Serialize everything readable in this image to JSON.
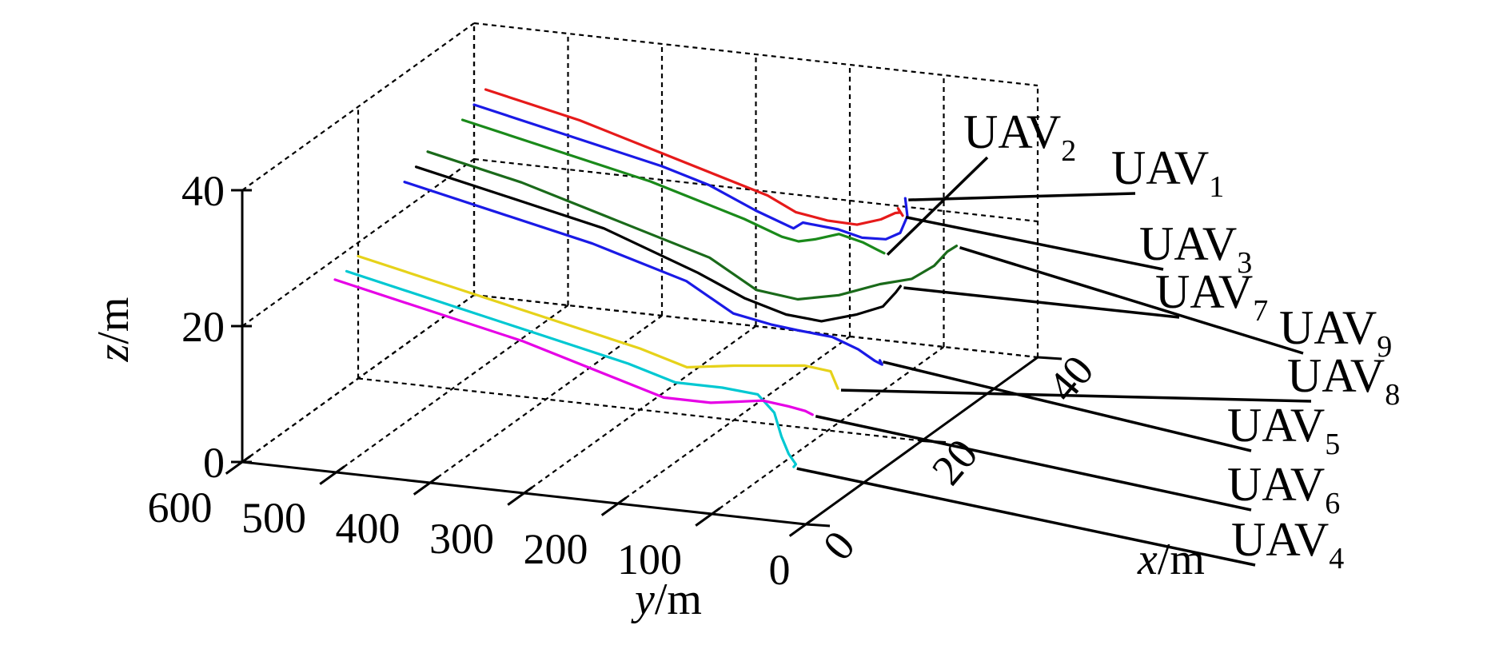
{
  "chart_data": {
    "type": "line3d",
    "title": "",
    "xlabel": {
      "var": "x",
      "unit": "/m"
    },
    "ylabel": {
      "var": "y",
      "unit": "/m"
    },
    "zlabel": {
      "var": "z",
      "unit": "/m"
    },
    "xlim": [
      0,
      40
    ],
    "ylim": [
      0,
      600
    ],
    "zlim": [
      0,
      40
    ],
    "x_ticks": [
      "0",
      "20",
      "40"
    ],
    "y_ticks": [
      "600",
      "500",
      "400",
      "300",
      "200",
      "100",
      "0"
    ],
    "z_ticks": [
      "0",
      "20",
      "40"
    ],
    "grid": true,
    "series": [
      {
        "name": "UAV",
        "sub": "1",
        "color": "#1a1ae6",
        "points": [
          [
            40,
            600,
            28
          ],
          [
            40,
            500,
            25
          ],
          [
            40,
            400,
            22
          ],
          [
            40,
            350,
            20
          ],
          [
            40,
            300,
            17
          ],
          [
            40,
            260,
            15
          ],
          [
            40,
            250,
            16
          ],
          [
            38,
            200,
            17
          ],
          [
            34,
            150,
            19
          ],
          [
            30,
            100,
            22
          ],
          [
            26,
            60,
            26
          ],
          [
            24,
            40,
            30
          ],
          [
            22,
            30,
            34
          ]
        ]
      },
      {
        "name": "UAV",
        "sub": "2",
        "color": "#1a8a1a",
        "points": [
          [
            38,
            600,
            27
          ],
          [
            38,
            500,
            24
          ],
          [
            38,
            400,
            21
          ],
          [
            38,
            350,
            19
          ],
          [
            38,
            300,
            17
          ],
          [
            38,
            260,
            15
          ],
          [
            36,
            230,
            16
          ],
          [
            34,
            200,
            18
          ],
          [
            30,
            150,
            22
          ],
          [
            26,
            100,
            24
          ],
          [
            22,
            60,
            26
          ],
          [
            20,
            40,
            27
          ]
        ]
      },
      {
        "name": "UAV",
        "sub": "3",
        "color": "#e61a1a",
        "points": [
          [
            42,
            600,
            29
          ],
          [
            42,
            500,
            26
          ],
          [
            42,
            400,
            22
          ],
          [
            42,
            300,
            18
          ],
          [
            42,
            270,
            16
          ],
          [
            41,
            230,
            16
          ],
          [
            38,
            180,
            18
          ],
          [
            34,
            130,
            22
          ],
          [
            30,
            90,
            26
          ],
          [
            26,
            60,
            29
          ],
          [
            24,
            50,
            31
          ],
          [
            24,
            45,
            30
          ]
        ]
      },
      {
        "name": "UAV",
        "sub": "4",
        "color": "#00c8d2",
        "points": [
          [
            18,
            600,
            17
          ],
          [
            18,
            500,
            14
          ],
          [
            18,
            400,
            11
          ],
          [
            18,
            300,
            8
          ],
          [
            18,
            250,
            6
          ],
          [
            18,
            200,
            6
          ],
          [
            16,
            150,
            7
          ],
          [
            14,
            120,
            6
          ],
          [
            12,
            100,
            4
          ],
          [
            10,
            80,
            3
          ],
          [
            8,
            60,
            3
          ],
          [
            6,
            50,
            4
          ]
        ]
      },
      {
        "name": "UAV",
        "sub": "5",
        "color": "#1a1ae6",
        "points": [
          [
            28,
            600,
            24
          ],
          [
            28,
            500,
            21
          ],
          [
            28,
            400,
            18
          ],
          [
            28,
            300,
            14
          ],
          [
            28,
            250,
            10
          ],
          [
            28,
            210,
            9
          ],
          [
            26,
            170,
            10
          ],
          [
            24,
            120,
            11
          ],
          [
            22,
            80,
            11
          ],
          [
            20,
            50,
            11
          ],
          [
            18,
            30,
            12
          ],
          [
            16,
            20,
            14
          ]
        ]
      },
      {
        "name": "UAV",
        "sub": "6",
        "color": "#e600e6",
        "points": [
          [
            16,
            600,
            17
          ],
          [
            16,
            500,
            14
          ],
          [
            16,
            400,
            11
          ],
          [
            16,
            300,
            7
          ],
          [
            16,
            250,
            5
          ],
          [
            16,
            200,
            5
          ],
          [
            14,
            160,
            7
          ],
          [
            12,
            120,
            9
          ],
          [
            10,
            80,
            10
          ],
          [
            8,
            50,
            11
          ],
          [
            6,
            30,
            12
          ]
        ]
      },
      {
        "name": "UAV",
        "sub": "7",
        "color": "#000000",
        "points": [
          [
            30,
            600,
            25
          ],
          [
            30,
            500,
            22
          ],
          [
            30,
            400,
            19
          ],
          [
            30,
            300,
            14
          ],
          [
            30,
            250,
            11
          ],
          [
            29,
            200,
            10
          ],
          [
            27,
            150,
            11
          ],
          [
            25,
            100,
            14
          ],
          [
            23,
            60,
            17
          ],
          [
            22,
            40,
            20
          ],
          [
            22,
            35,
            21
          ]
        ]
      },
      {
        "name": "UAV",
        "sub": "8",
        "color": "#e6d21a",
        "points": [
          [
            20,
            600,
            18
          ],
          [
            20,
            500,
            15
          ],
          [
            20,
            400,
            12
          ],
          [
            20,
            300,
            9
          ],
          [
            20,
            250,
            7
          ],
          [
            20,
            200,
            8
          ],
          [
            18,
            150,
            10
          ],
          [
            16,
            100,
            12
          ],
          [
            14,
            60,
            13
          ],
          [
            12,
            40,
            12
          ]
        ]
      },
      {
        "name": "UAV",
        "sub": "9",
        "color": "#1a6a1a",
        "points": [
          [
            32,
            600,
            26
          ],
          [
            32,
            500,
            23
          ],
          [
            32,
            400,
            19
          ],
          [
            32,
            300,
            15
          ],
          [
            32,
            250,
            11
          ],
          [
            31,
            200,
            11
          ],
          [
            30,
            150,
            13
          ],
          [
            29,
            100,
            16
          ],
          [
            28,
            60,
            18
          ],
          [
            27,
            30,
            21
          ],
          [
            26,
            10,
            24
          ],
          [
            26,
            0,
            25
          ]
        ]
      }
    ],
    "callouts": [
      {
        "name": "UAV",
        "sub": "2"
      },
      {
        "name": "UAV",
        "sub": "1"
      },
      {
        "name": "UAV",
        "sub": "3"
      },
      {
        "name": "UAV",
        "sub": "7"
      },
      {
        "name": "UAV",
        "sub": "9"
      },
      {
        "name": "UAV",
        "sub": "8"
      },
      {
        "name": "UAV",
        "sub": "5"
      },
      {
        "name": "UAV",
        "sub": "6"
      },
      {
        "name": "UAV",
        "sub": "4"
      }
    ]
  }
}
